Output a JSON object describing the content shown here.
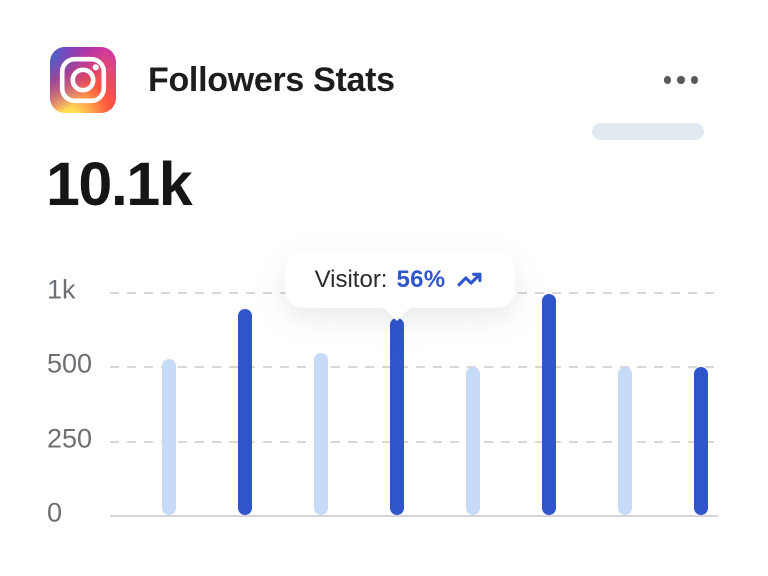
{
  "header": {
    "title": "Followers Stats",
    "menu": {
      "label": "more options"
    }
  },
  "icons": {
    "app_icon": "instagram-icon",
    "menu_icon": "ellipsis-icon",
    "tooltip_icon": "trending-up-icon"
  },
  "stats": {
    "followers_total": "10.1k"
  },
  "tooltip": {
    "label": "Visitor:",
    "value": "56%"
  },
  "colors": {
    "bar_light": "#C7DAF8",
    "bar_dark": "#2E55CB",
    "accent_blue": "#2F56CD",
    "grid": "#D6D8DB",
    "axis_text": "#6C7074",
    "title_text": "#1C1D1F",
    "number_text": "#141517",
    "pill": "#E3E9F0",
    "menu_dots": "#58595B"
  },
  "chart_data": {
    "type": "bar",
    "title": "Followers Stats",
    "xlabel": "",
    "ylabel": "",
    "y_ticks": [
      "0",
      "250",
      "500",
      "1k"
    ],
    "y_tick_values": [
      0,
      250,
      500,
      1000
    ],
    "axis_note": "y ticks equally spaced (non-linear scale), horizontal dashed gridlines, no x labels",
    "legend_position": "none",
    "bars": [
      {
        "value": 555,
        "tone": "light"
      },
      {
        "value": 890,
        "tone": "dark"
      },
      {
        "value": 595,
        "tone": "light"
      },
      {
        "value": 830,
        "tone": "dark",
        "tooltip": "Visitor: 56%"
      },
      {
        "value": 500,
        "tone": "light"
      },
      {
        "value": 995,
        "tone": "dark"
      },
      {
        "value": 505,
        "tone": "light"
      },
      {
        "value": 505,
        "tone": "dark"
      }
    ]
  }
}
